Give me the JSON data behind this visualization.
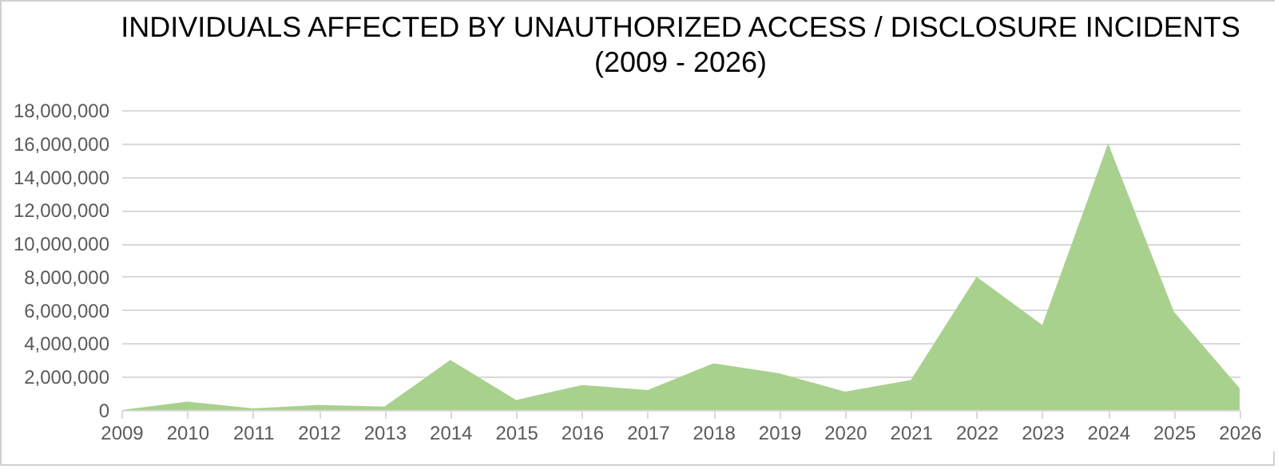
{
  "chart_data": {
    "type": "area",
    "title": "INDIVIDUALS AFFECTED BY UNAUTHORIZED ACCESS / DISCLOSURE INCIDENTS",
    "subtitle": "(2009 - 2026)",
    "categories": [
      "2009",
      "2010",
      "2011",
      "2012",
      "2013",
      "2014",
      "2015",
      "2016",
      "2017",
      "2018",
      "2019",
      "2020",
      "2021",
      "2022",
      "2023",
      "2024",
      "2025",
      "2026"
    ],
    "series": [
      {
        "color": "#a9d18e",
        "values": [
          0,
          500000,
          100000,
          300000,
          200000,
          3000000,
          600000,
          1500000,
          1200000,
          2800000,
          2200000,
          1100000,
          1800000,
          8000000,
          5100000,
          16000000,
          5900000,
          1300000
        ]
      }
    ],
    "ylim": [
      0,
      18000000
    ],
    "yticks": [
      0,
      {
        "value": 2000000,
        "label": "2,000,000"
      },
      {
        "value": 4000000,
        "label": "4,000,000"
      },
      {
        "value": 6000000,
        "label": "6,000,000"
      },
      {
        "value": 8000000,
        "label": "8,000,000"
      },
      {
        "value": 10000000,
        "label": "10,000,000"
      },
      {
        "value": 12000000,
        "label": "12,000,000"
      },
      {
        "value": 14000000,
        "label": "14,000,000"
      },
      {
        "value": 16000000,
        "label": "16,000,000"
      },
      {
        "value": 18000000,
        "label": "18,000,000"
      }
    ],
    "grid": "y"
  }
}
